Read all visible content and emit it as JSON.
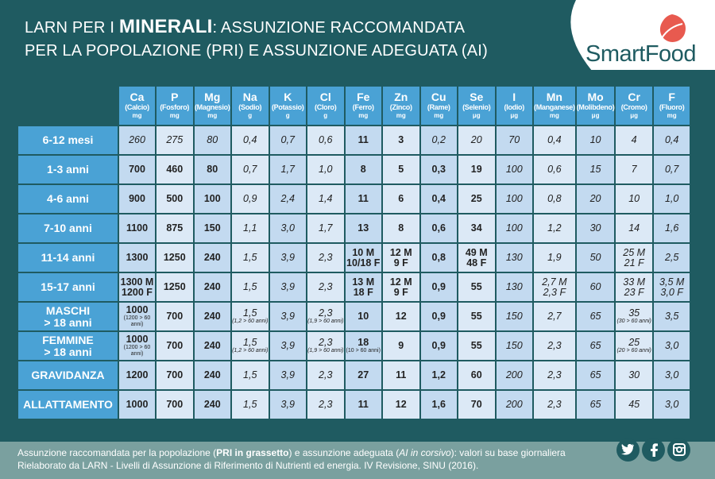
{
  "header": {
    "title_pre": "LARN PER I ",
    "title_big": "MINERALI",
    "title_post": ": ASSUNZIONE RACCOMANDATA",
    "title_line2": "PER LA POPOLAZIONE (PRI) E ASSUNZIONE ADEGUATA (AI)",
    "logo_text": "SmartFood",
    "brand_color": "#1f5b61",
    "logo_color": "#e85a4f"
  },
  "columns": [
    {
      "sym": "Ca",
      "name": "(Calcio)",
      "unit": "mg"
    },
    {
      "sym": "P",
      "name": "(Fosforo)",
      "unit": "mg"
    },
    {
      "sym": "Mg",
      "name": "(Magnesio)",
      "unit": "mg"
    },
    {
      "sym": "Na",
      "name": "(Sodio)",
      "unit": "g"
    },
    {
      "sym": "K",
      "name": "(Potassio)",
      "unit": "g"
    },
    {
      "sym": "Cl",
      "name": "(Cloro)",
      "unit": "g"
    },
    {
      "sym": "Fe",
      "name": "(Ferro)",
      "unit": "mg"
    },
    {
      "sym": "Zn",
      "name": "(Zinco)",
      "unit": "mg"
    },
    {
      "sym": "Cu",
      "name": "(Rame)",
      "unit": "mg"
    },
    {
      "sym": "Se",
      "name": "(Selenio)",
      "unit": "μg"
    },
    {
      "sym": "I",
      "name": "(Iodio)",
      "unit": "μg"
    },
    {
      "sym": "Mn",
      "name": "(Manganese)",
      "unit": "mg"
    },
    {
      "sym": "Mo",
      "name": "(Molibdeno)",
      "unit": "μg"
    },
    {
      "sym": "Cr",
      "name": "(Cromo)",
      "unit": "μg"
    },
    {
      "sym": "F",
      "name": "(Fluoro)",
      "unit": "mg"
    }
  ],
  "rows": [
    {
      "label": "6-12 mesi",
      "cells": [
        {
          "t": "260",
          "s": "i"
        },
        {
          "t": "275",
          "s": "i"
        },
        {
          "t": "80",
          "s": "i"
        },
        {
          "t": "0,4",
          "s": "i"
        },
        {
          "t": "0,7",
          "s": "i"
        },
        {
          "t": "0,6",
          "s": "i"
        },
        {
          "t": "11",
          "s": "b"
        },
        {
          "t": "3",
          "s": "b"
        },
        {
          "t": "0,2",
          "s": "i"
        },
        {
          "t": "20",
          "s": "i"
        },
        {
          "t": "70",
          "s": "i"
        },
        {
          "t": "0,4",
          "s": "i"
        },
        {
          "t": "10",
          "s": "i"
        },
        {
          "t": "4",
          "s": "i"
        },
        {
          "t": "0,4",
          "s": "i"
        }
      ]
    },
    {
      "label": "1-3 anni",
      "cells": [
        {
          "t": "700",
          "s": "b"
        },
        {
          "t": "460",
          "s": "b"
        },
        {
          "t": "80",
          "s": "b"
        },
        {
          "t": "0,7",
          "s": "i"
        },
        {
          "t": "1,7",
          "s": "i"
        },
        {
          "t": "1,0",
          "s": "i"
        },
        {
          "t": "8",
          "s": "b"
        },
        {
          "t": "5",
          "s": "b"
        },
        {
          "t": "0,3",
          "s": "b"
        },
        {
          "t": "19",
          "s": "b"
        },
        {
          "t": "100",
          "s": "i"
        },
        {
          "t": "0,6",
          "s": "i"
        },
        {
          "t": "15",
          "s": "i"
        },
        {
          "t": "7",
          "s": "i"
        },
        {
          "t": "0,7",
          "s": "i"
        }
      ]
    },
    {
      "label": "4-6 anni",
      "cells": [
        {
          "t": "900",
          "s": "b"
        },
        {
          "t": "500",
          "s": "b"
        },
        {
          "t": "100",
          "s": "b"
        },
        {
          "t": "0,9",
          "s": "i"
        },
        {
          "t": "2,4",
          "s": "i"
        },
        {
          "t": "1,4",
          "s": "i"
        },
        {
          "t": "11",
          "s": "b"
        },
        {
          "t": "6",
          "s": "b"
        },
        {
          "t": "0,4",
          "s": "b"
        },
        {
          "t": "25",
          "s": "b"
        },
        {
          "t": "100",
          "s": "i"
        },
        {
          "t": "0,8",
          "s": "i"
        },
        {
          "t": "20",
          "s": "i"
        },
        {
          "t": "10",
          "s": "i"
        },
        {
          "t": "1,0",
          "s": "i"
        }
      ]
    },
    {
      "label": "7-10 anni",
      "cells": [
        {
          "t": "1100",
          "s": "b"
        },
        {
          "t": "875",
          "s": "b"
        },
        {
          "t": "150",
          "s": "b"
        },
        {
          "t": "1,1",
          "s": "i"
        },
        {
          "t": "3,0",
          "s": "i"
        },
        {
          "t": "1,7",
          "s": "i"
        },
        {
          "t": "13",
          "s": "b"
        },
        {
          "t": "8",
          "s": "b"
        },
        {
          "t": "0,6",
          "s": "b"
        },
        {
          "t": "34",
          "s": "b"
        },
        {
          "t": "100",
          "s": "i"
        },
        {
          "t": "1,2",
          "s": "i"
        },
        {
          "t": "30",
          "s": "i"
        },
        {
          "t": "14",
          "s": "i"
        },
        {
          "t": "1,6",
          "s": "i"
        }
      ]
    },
    {
      "label": "11-14 anni",
      "cells": [
        {
          "t": "1300",
          "s": "b"
        },
        {
          "t": "1250",
          "s": "b"
        },
        {
          "t": "240",
          "s": "b"
        },
        {
          "t": "1,5",
          "s": "i"
        },
        {
          "t": "3,9",
          "s": "i"
        },
        {
          "t": "2,3",
          "s": "i"
        },
        {
          "t": "10 M",
          "t2": "10/18 F",
          "s": "b"
        },
        {
          "t": "12 M",
          "t2": "9 F",
          "s": "b"
        },
        {
          "t": "0,8",
          "s": "b"
        },
        {
          "t": "49 M",
          "t2": "48 F",
          "s": "b"
        },
        {
          "t": "130",
          "s": "i"
        },
        {
          "t": "1,9",
          "s": "i"
        },
        {
          "t": "50",
          "s": "i"
        },
        {
          "t": "25 M",
          "t2": "21 F",
          "s": "i"
        },
        {
          "t": "2,5",
          "s": "i"
        }
      ]
    },
    {
      "label": "15-17 anni",
      "cells": [
        {
          "t": "1300 M",
          "t2": "1200 F",
          "s": "b"
        },
        {
          "t": "1250",
          "s": "b"
        },
        {
          "t": "240",
          "s": "b"
        },
        {
          "t": "1,5",
          "s": "i"
        },
        {
          "t": "3,9",
          "s": "i"
        },
        {
          "t": "2,3",
          "s": "i"
        },
        {
          "t": "13 M",
          "t2": "18 F",
          "s": "b"
        },
        {
          "t": "12 M",
          "t2": "9 F",
          "s": "b"
        },
        {
          "t": "0,9",
          "s": "b"
        },
        {
          "t": "55",
          "s": "b"
        },
        {
          "t": "130",
          "s": "i"
        },
        {
          "t": "2,7 M",
          "t2": "2,3 F",
          "s": "i"
        },
        {
          "t": "60",
          "s": "i"
        },
        {
          "t": "33 M",
          "t2": "23 F",
          "s": "i"
        },
        {
          "t": "3,5 M",
          "t2": "3,0 F",
          "s": "i"
        }
      ]
    },
    {
      "label": "MASCHI",
      "label2": "> 18 anni",
      "cells": [
        {
          "t": "1000",
          "sub": "(1200 > 60 anni)",
          "s": "b"
        },
        {
          "t": "700",
          "s": "b"
        },
        {
          "t": "240",
          "s": "b"
        },
        {
          "t": "1,5",
          "sub": "(1,2 > 60 anni)",
          "s": "i"
        },
        {
          "t": "3,9",
          "s": "i"
        },
        {
          "t": "2,3",
          "sub": "(1,9 > 60 anni)",
          "s": "i"
        },
        {
          "t": "10",
          "s": "b"
        },
        {
          "t": "12",
          "s": "b"
        },
        {
          "t": "0,9",
          "s": "b"
        },
        {
          "t": "55",
          "s": "b"
        },
        {
          "t": "150",
          "s": "i"
        },
        {
          "t": "2,7",
          "s": "i"
        },
        {
          "t": "65",
          "s": "i"
        },
        {
          "t": "35",
          "sub": "(30 > 60 anni)",
          "s": "i"
        },
        {
          "t": "3,5",
          "s": "i"
        }
      ]
    },
    {
      "label": "FEMMINE",
      "label2": "> 18 anni",
      "cells": [
        {
          "t": "1000",
          "sub": "(1200 > 60 anni)",
          "s": "b"
        },
        {
          "t": "700",
          "s": "b"
        },
        {
          "t": "240",
          "s": "b"
        },
        {
          "t": "1,5",
          "sub": "(1,2 > 60 anni)",
          "s": "i"
        },
        {
          "t": "3,9",
          "s": "i"
        },
        {
          "t": "2,3",
          "sub": "(1,9 > 60 anni)",
          "s": "i"
        },
        {
          "t": "18",
          "sub": "(10 > 60 anni)",
          "s": "b"
        },
        {
          "t": "9",
          "s": "b"
        },
        {
          "t": "0,9",
          "s": "b"
        },
        {
          "t": "55",
          "s": "b"
        },
        {
          "t": "150",
          "s": "i"
        },
        {
          "t": "2,3",
          "s": "i"
        },
        {
          "t": "65",
          "s": "i"
        },
        {
          "t": "25",
          "sub": "(20 > 60 anni)",
          "s": "i"
        },
        {
          "t": "3,0",
          "s": "i"
        }
      ]
    },
    {
      "label": "GRAVIDANZA",
      "cells": [
        {
          "t": "1200",
          "s": "b"
        },
        {
          "t": "700",
          "s": "b"
        },
        {
          "t": "240",
          "s": "b"
        },
        {
          "t": "1,5",
          "s": "i"
        },
        {
          "t": "3,9",
          "s": "i"
        },
        {
          "t": "2,3",
          "s": "i"
        },
        {
          "t": "27",
          "s": "b"
        },
        {
          "t": "11",
          "s": "b"
        },
        {
          "t": "1,2",
          "s": "b"
        },
        {
          "t": "60",
          "s": "b"
        },
        {
          "t": "200",
          "s": "i"
        },
        {
          "t": "2,3",
          "s": "i"
        },
        {
          "t": "65",
          "s": "i"
        },
        {
          "t": "30",
          "s": "i"
        },
        {
          "t": "3,0",
          "s": "i"
        }
      ]
    },
    {
      "label": "ALLATTAMENTO",
      "cells": [
        {
          "t": "1000",
          "s": "b"
        },
        {
          "t": "700",
          "s": "b"
        },
        {
          "t": "240",
          "s": "b"
        },
        {
          "t": "1,5",
          "s": "i"
        },
        {
          "t": "3,9",
          "s": "i"
        },
        {
          "t": "2,3",
          "s": "i"
        },
        {
          "t": "11",
          "s": "b"
        },
        {
          "t": "12",
          "s": "b"
        },
        {
          "t": "1,6",
          "s": "b"
        },
        {
          "t": "70",
          "s": "b"
        },
        {
          "t": "200",
          "s": "i"
        },
        {
          "t": "2,3",
          "s": "i"
        },
        {
          "t": "65",
          "s": "i"
        },
        {
          "t": "45",
          "s": "i"
        },
        {
          "t": "3,0",
          "s": "i"
        }
      ]
    }
  ],
  "footer": {
    "l1_a": "Assunzione raccomandata per la popolazione (",
    "l1_b": "PRI in grassetto",
    "l1_c": ") e assunzione adeguata (",
    "l1_d": "AI in corsivo",
    "l1_e": "): valori su base giornaliera",
    "line2": "Rielaborato da LARN - Livelli di Assunzione di Riferimento di Nutrienti ed energia. IV Revisione, SINU (2016)."
  },
  "social": [
    "twitter-icon",
    "facebook-icon",
    "instagram-icon"
  ],
  "colors": {
    "header_cell": "#4aa2d5",
    "cell_even": "#c3daf0",
    "cell_odd": "#dce9f6",
    "footer": "#7aa09f"
  }
}
